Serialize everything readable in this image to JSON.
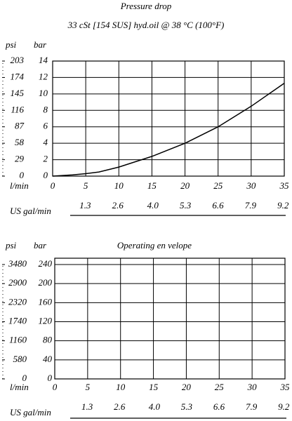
{
  "chart_data": [
    {
      "type": "line",
      "title": "Pressure drop",
      "subtitle": "33 cSt [154 SUS] hyd.oil @ 38   °C (100°F)",
      "y_label": "bar",
      "y2_label": "psi",
      "x_label": "l/min",
      "x2_label": "US gal/min",
      "x": [
        0,
        3,
        5,
        7,
        10,
        15,
        20,
        25,
        30,
        35
      ],
      "series": [
        {
          "color": "#000000",
          "values": [
            0,
            0.15,
            0.3,
            0.5,
            1.1,
            2.4,
            4.0,
            6.0,
            8.5,
            11.3
          ]
        }
      ],
      "xlim": [
        0,
        35
      ],
      "xticks": [
        0,
        5,
        10,
        15,
        20,
        25,
        30,
        35
      ],
      "x2lim": [
        0,
        9.25
      ],
      "x2ticks": [
        1.3,
        2.6,
        {
          "value": 4,
          "label": "4.0"
        },
        5.3,
        6.6,
        7.9,
        9.2
      ],
      "ylim": [
        0,
        14
      ],
      "yticks": [
        0,
        2,
        4,
        6,
        8,
        10,
        12,
        14
      ],
      "y2lim": [
        0,
        203
      ],
      "y2ticks": [
        0,
        29,
        58,
        87,
        116,
        145,
        174,
        203
      ],
      "grid": true
    },
    {
      "type": "line",
      "title": "Operating en velope",
      "y_label": "bar",
      "y2_label": "psi",
      "x_label": "l/min",
      "x2_label": "US gal/min",
      "x": [],
      "series": [],
      "xlim": [
        0,
        35
      ],
      "xticks": [
        0,
        5,
        10,
        15,
        20,
        25,
        30,
        35
      ],
      "x2lim": [
        0,
        9.25
      ],
      "x2ticks": [
        1.3,
        2.6,
        {
          "value": 4,
          "label": "4.0"
        },
        5.3,
        6.6,
        7.9,
        9.2
      ],
      "ylim": [
        0,
        240
      ],
      "yticks": [
        0,
        40,
        80,
        120,
        160,
        200,
        240
      ],
      "y2lim": [
        0,
        3480
      ],
      "y2ticks": [
        0,
        580,
        1160,
        1740,
        2320,
        2900,
        3480
      ],
      "grid": true
    }
  ]
}
